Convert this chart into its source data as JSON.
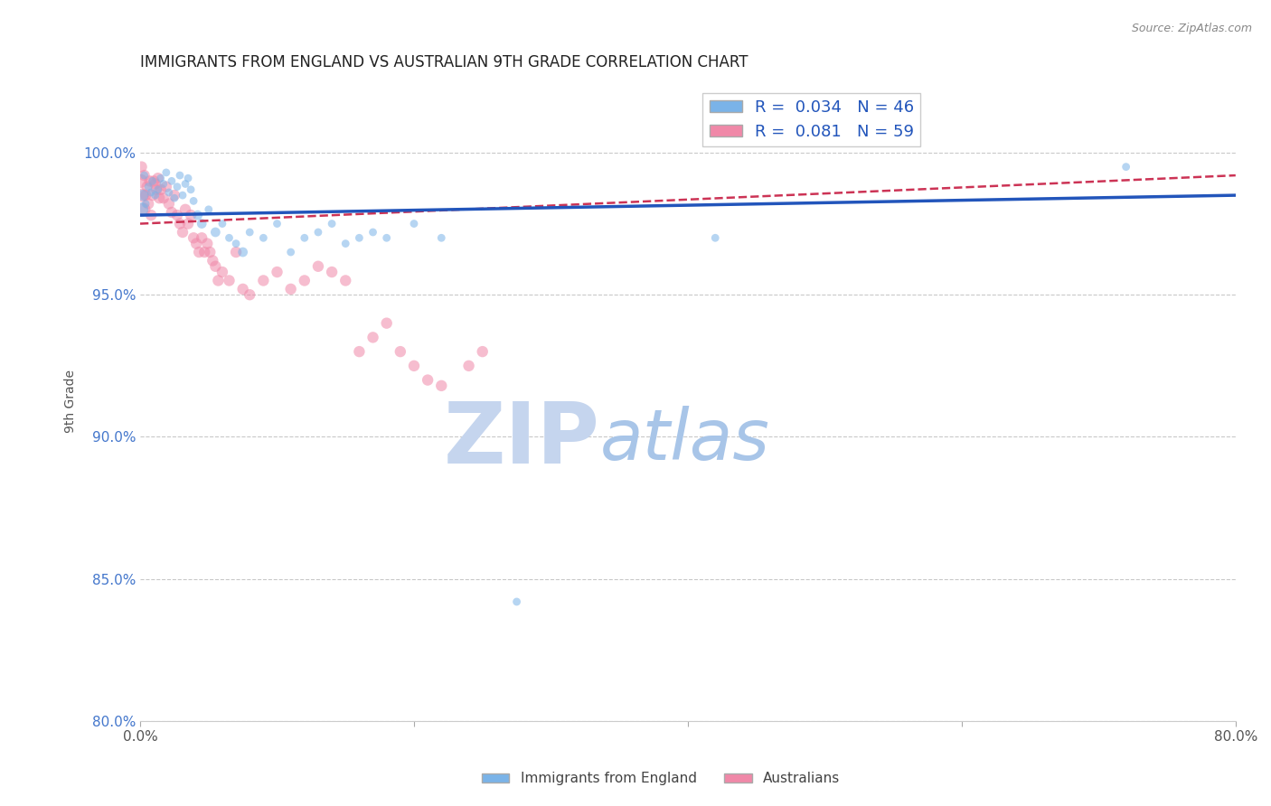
{
  "title": "IMMIGRANTS FROM ENGLAND VS AUSTRALIAN 9TH GRADE CORRELATION CHART",
  "source_text": "Source: ZipAtlas.com",
  "ylabel": "9th Grade",
  "xlim": [
    0.0,
    80.0
  ],
  "ylim": [
    80.0,
    102.5
  ],
  "y_ticks": [
    80.0,
    85.0,
    90.0,
    95.0,
    100.0
  ],
  "y_tick_labels": [
    "80.0%",
    "85.0%",
    "90.0%",
    "95.0%",
    "100.0%"
  ],
  "blue_label": "Immigrants from England",
  "pink_label": "Australians",
  "blue_R": 0.034,
  "blue_N": 46,
  "pink_R": 0.081,
  "pink_N": 59,
  "blue_color": "#7ab3e8",
  "pink_color": "#f088a8",
  "blue_line_color": "#2255bb",
  "pink_line_color": "#cc3355",
  "watermark_zip": "ZIP",
  "watermark_atlas": "atlas",
  "watermark_color_zip": "#c5d5ee",
  "watermark_color_atlas": "#a8c5e8",
  "grid_color": "#bbbbbb",
  "blue_scatter_x": [
    0.3,
    0.6,
    0.9,
    1.1,
    1.3,
    1.5,
    1.7,
    1.9,
    2.1,
    2.3,
    2.5,
    2.7,
    2.9,
    3.1,
    3.3,
    3.5,
    3.7,
    3.9,
    4.2,
    4.5,
    5.0,
    5.5,
    6.0,
    6.5,
    7.0,
    7.5,
    8.0,
    9.0,
    10.0,
    11.0,
    12.0,
    13.0,
    14.0,
    15.0,
    16.0,
    17.0,
    18.0,
    20.0,
    22.0,
    0.1,
    0.2,
    0.4,
    42.0,
    27.5,
    72.0,
    0.8
  ],
  "blue_scatter_y": [
    99.2,
    98.8,
    99.0,
    98.5,
    98.7,
    99.1,
    98.9,
    99.3,
    98.6,
    99.0,
    98.4,
    98.8,
    99.2,
    98.5,
    98.9,
    99.1,
    98.7,
    98.3,
    97.8,
    97.5,
    98.0,
    97.2,
    97.5,
    97.0,
    96.8,
    96.5,
    97.2,
    97.0,
    97.5,
    96.5,
    97.0,
    97.2,
    97.5,
    96.8,
    97.0,
    97.2,
    97.0,
    97.5,
    97.0,
    98.0,
    98.5,
    98.2,
    97.0,
    84.2,
    99.5,
    98.6
  ],
  "blue_scatter_size": [
    40,
    40,
    40,
    40,
    40,
    40,
    40,
    40,
    40,
    40,
    40,
    40,
    40,
    40,
    40,
    40,
    40,
    40,
    60,
    60,
    40,
    60,
    40,
    40,
    40,
    60,
    40,
    40,
    40,
    40,
    40,
    40,
    40,
    40,
    40,
    40,
    40,
    40,
    40,
    120,
    80,
    40,
    40,
    40,
    40,
    40
  ],
  "pink_scatter_x": [
    0.1,
    0.3,
    0.5,
    0.7,
    0.9,
    1.1,
    1.3,
    1.5,
    1.7,
    1.9,
    2.1,
    2.3,
    2.5,
    2.7,
    2.9,
    3.1,
    3.3,
    3.5,
    3.7,
    3.9,
    4.1,
    4.3,
    4.5,
    4.7,
    4.9,
    5.1,
    5.3,
    5.5,
    5.7,
    6.0,
    6.5,
    7.0,
    7.5,
    8.0,
    9.0,
    10.0,
    11.0,
    12.0,
    13.0,
    14.0,
    15.0,
    16.0,
    17.0,
    18.0,
    19.0,
    20.0,
    21.0,
    22.0,
    24.0,
    25.0,
    0.05,
    0.15,
    0.25,
    0.4,
    0.6,
    0.8,
    1.0,
    1.2,
    1.4
  ],
  "pink_scatter_y": [
    99.5,
    99.2,
    98.8,
    99.0,
    98.5,
    98.9,
    99.1,
    98.7,
    98.4,
    98.8,
    98.2,
    97.9,
    98.5,
    97.8,
    97.5,
    97.2,
    98.0,
    97.5,
    97.8,
    97.0,
    96.8,
    96.5,
    97.0,
    96.5,
    96.8,
    96.5,
    96.2,
    96.0,
    95.5,
    95.8,
    95.5,
    96.5,
    95.2,
    95.0,
    95.5,
    95.8,
    95.2,
    95.5,
    96.0,
    95.8,
    95.5,
    93.0,
    93.5,
    94.0,
    93.0,
    92.5,
    92.0,
    91.8,
    92.5,
    93.0,
    99.0,
    98.5,
    98.0,
    98.5,
    98.2,
    97.8,
    99.0,
    98.7,
    98.4
  ],
  "pink_scatter_size": [
    80,
    80,
    80,
    80,
    80,
    80,
    80,
    80,
    80,
    80,
    80,
    80,
    80,
    80,
    80,
    80,
    80,
    80,
    80,
    80,
    80,
    80,
    80,
    80,
    80,
    80,
    80,
    80,
    80,
    80,
    80,
    80,
    80,
    80,
    80,
    80,
    80,
    80,
    80,
    80,
    80,
    80,
    80,
    80,
    80,
    80,
    80,
    80,
    80,
    80,
    120,
    120,
    120,
    80,
    80,
    80,
    80,
    80,
    80
  ],
  "blue_trend_x": [
    0.0,
    80.0
  ],
  "blue_trend_y": [
    97.8,
    98.5
  ],
  "pink_trend_x": [
    0.0,
    80.0
  ],
  "pink_trend_y": [
    97.5,
    99.2
  ]
}
